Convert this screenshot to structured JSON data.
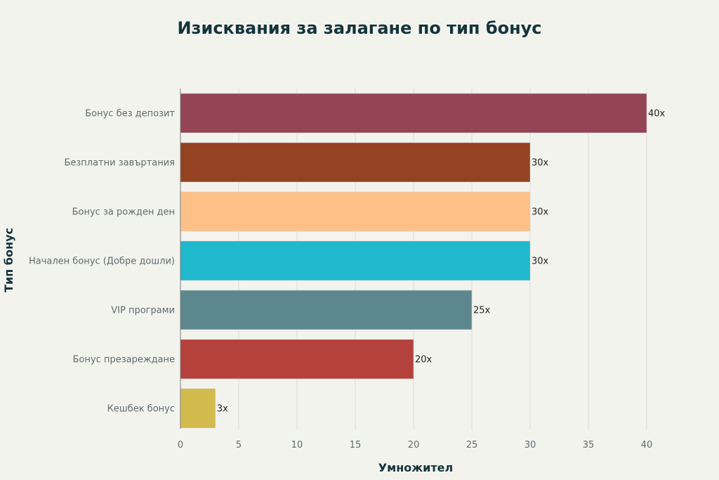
{
  "chart_data": {
    "type": "bar",
    "orientation": "horizontal",
    "title": "Изисквания за залагане по тип бонус",
    "xlabel": "Умножител",
    "ylabel": "Тип бонус",
    "categories": [
      "Бонус без депозит",
      "Безплатни завъртания",
      "Бонус за рожден ден",
      "Начален бонус (Добре дошли)",
      "VIP програми",
      "Бонус презареждане",
      "Кешбек бонус"
    ],
    "values": [
      40,
      30,
      30,
      30,
      25,
      20,
      3
    ],
    "data_labels": [
      "40x",
      "30x",
      "30x",
      "30x",
      "25x",
      "20x",
      "3x"
    ],
    "colors": [
      "#944454",
      "#944221",
      "#fdc087",
      "#1fb8cd",
      "#5d878f",
      "#b4413c",
      "#d2ba4c"
    ],
    "xlim": [
      0,
      40
    ],
    "xticks": [
      "0",
      "5",
      "10",
      "15",
      "20",
      "25",
      "30",
      "35",
      "40"
    ],
    "grid": true,
    "legend": "none"
  }
}
